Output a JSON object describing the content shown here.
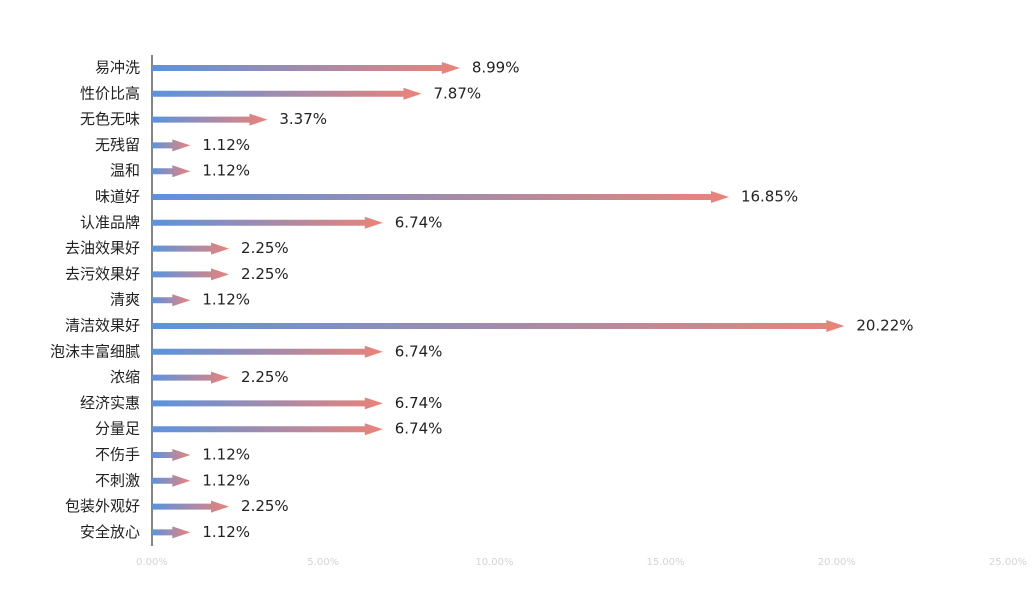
{
  "chart_data": {
    "type": "bar",
    "orientation": "horizontal",
    "categories": [
      "易冲洗",
      "性价比高",
      "无色无味",
      "无残留",
      "温和",
      "味道好",
      "认准品牌",
      "去油效果好",
      "去污效果好",
      "清爽",
      "清洁效果好",
      "泡沫丰富细腻",
      "浓缩",
      "经济实惠",
      "分量足",
      "不伤手",
      "不刺激",
      "包装外观好",
      "安全放心"
    ],
    "values": [
      8.99,
      7.87,
      3.37,
      1.12,
      1.12,
      16.85,
      6.74,
      2.25,
      2.25,
      1.12,
      20.22,
      6.74,
      2.25,
      6.74,
      6.74,
      1.12,
      1.12,
      2.25,
      1.12
    ],
    "value_labels": [
      "8.99%",
      "7.87%",
      "3.37%",
      "1.12%",
      "1.12%",
      "16.85%",
      "6.74%",
      "2.25%",
      "2.25%",
      "1.12%",
      "20.22%",
      "6.74%",
      "2.25%",
      "6.74%",
      "6.74%",
      "1.12%",
      "1.12%",
      "2.25%",
      "1.12%"
    ],
    "colors": [
      "#5b93de",
      "#ea8378"
    ],
    "xlim": [
      0,
      25
    ],
    "xticks": [
      {
        "value": 0,
        "label": "0.00%"
      },
      {
        "value": 5,
        "label": "5.00%"
      },
      {
        "value": 10,
        "label": "10.00%"
      },
      {
        "value": 15,
        "label": "15.00%"
      },
      {
        "value": 20,
        "label": "20.00%"
      },
      {
        "value": 25,
        "label": "25.00%"
      }
    ]
  }
}
